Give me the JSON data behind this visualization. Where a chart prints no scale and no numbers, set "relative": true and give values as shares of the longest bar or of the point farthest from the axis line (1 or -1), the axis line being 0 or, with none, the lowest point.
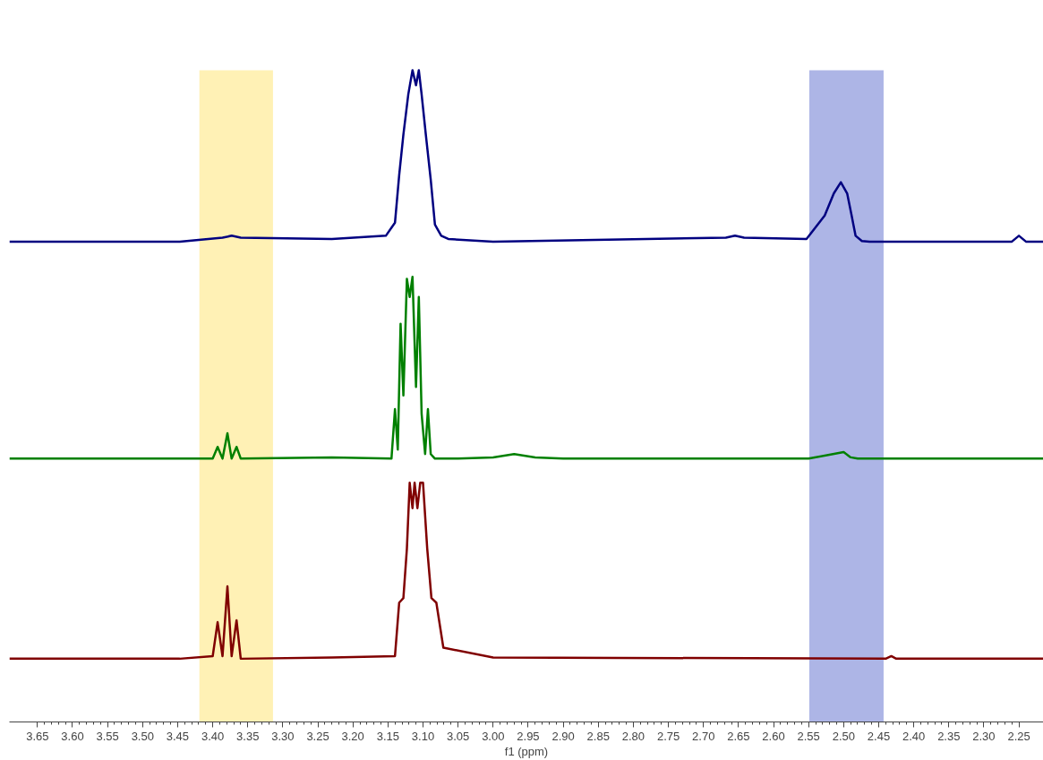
{
  "chart_data": {
    "type": "line",
    "relative": true,
    "xlabel": "f1 (ppm)",
    "xlim": [
      3.69,
      2.215
    ],
    "xticks": [
      {
        "value": 3.65,
        "label": "3.65"
      },
      {
        "value": 3.6,
        "label": "3.60"
      },
      {
        "value": 3.55,
        "label": "3.55"
      },
      {
        "value": 3.5,
        "label": "3.50"
      },
      {
        "value": 3.45,
        "label": "3.45"
      },
      {
        "value": 3.4,
        "label": "3.40"
      },
      {
        "value": 3.35,
        "label": "3.35"
      },
      {
        "value": 3.3,
        "label": "3.30"
      },
      {
        "value": 3.25,
        "label": "3.25"
      },
      {
        "value": 3.2,
        "label": "3.20"
      },
      {
        "value": 3.15,
        "label": "3.15"
      },
      {
        "value": 3.1,
        "label": "3.10"
      },
      {
        "value": 3.05,
        "label": "3.05"
      },
      {
        "value": 3.0,
        "label": "3.00"
      },
      {
        "value": 2.95,
        "label": "2.95"
      },
      {
        "value": 2.9,
        "label": "2.90"
      },
      {
        "value": 2.85,
        "label": "2.85"
      },
      {
        "value": 2.8,
        "label": "2.80"
      },
      {
        "value": 2.75,
        "label": "2.75"
      },
      {
        "value": 2.7,
        "label": "2.70"
      },
      {
        "value": 2.65,
        "label": "2.65"
      },
      {
        "value": 2.6,
        "label": "2.60"
      },
      {
        "value": 2.55,
        "label": "2.55"
      },
      {
        "value": 2.5,
        "label": "2.50"
      },
      {
        "value": 2.45,
        "label": "2.45"
      },
      {
        "value": 2.4,
        "label": "2.40"
      },
      {
        "value": 2.35,
        "label": "2.35"
      },
      {
        "value": 2.3,
        "label": "2.30"
      },
      {
        "value": 2.25,
        "label": "2.25"
      }
    ],
    "grid": false,
    "line_style": "solid",
    "marker": "none",
    "series": [
      {
        "color": "#000080",
        "x": [
          3.69,
          3.447,
          3.386,
          3.373,
          3.36,
          3.23,
          3.153,
          3.14,
          3.134,
          3.128,
          3.121,
          3.115,
          3.11,
          3.106,
          3.102,
          3.096,
          3.089,
          3.083,
          3.074,
          3.064,
          3.0,
          2.668,
          2.655,
          2.642,
          2.553,
          2.527,
          2.514,
          2.504,
          2.495,
          2.489,
          2.483,
          2.474,
          2.463,
          2.438,
          2.26,
          2.25,
          2.24,
          2.215
        ],
        "values": [
          0.737,
          0.737,
          0.743,
          0.746,
          0.743,
          0.741,
          0.746,
          0.766,
          0.839,
          0.901,
          0.963,
          1.0,
          0.977,
          1.0,
          0.963,
          0.901,
          0.832,
          0.763,
          0.746,
          0.741,
          0.737,
          0.743,
          0.746,
          0.743,
          0.741,
          0.777,
          0.811,
          0.828,
          0.811,
          0.779,
          0.746,
          0.738,
          0.737,
          0.737,
          0.737,
          0.746,
          0.737,
          0.737
        ]
      },
      {
        "color": "#008000",
        "x": [
          3.69,
          3.447,
          3.4,
          3.393,
          3.386,
          3.379,
          3.373,
          3.366,
          3.36,
          3.23,
          3.145,
          3.14,
          3.136,
          3.132,
          3.128,
          3.123,
          3.119,
          3.115,
          3.11,
          3.106,
          3.102,
          3.097,
          3.093,
          3.089,
          3.083,
          3.05,
          3.0,
          2.97,
          2.94,
          2.9,
          2.55,
          2.5,
          2.49,
          2.48,
          2.215
        ],
        "values": [
          0.404,
          0.404,
          0.404,
          0.422,
          0.404,
          0.443,
          0.404,
          0.422,
          0.404,
          0.406,
          0.404,
          0.48,
          0.418,
          0.611,
          0.501,
          0.68,
          0.652,
          0.683,
          0.514,
          0.652,
          0.473,
          0.411,
          0.48,
          0.411,
          0.404,
          0.404,
          0.406,
          0.411,
          0.406,
          0.404,
          0.404,
          0.414,
          0.406,
          0.404,
          0.404
        ]
      },
      {
        "color": "#800000",
        "x": [
          3.69,
          3.447,
          3.4,
          3.393,
          3.386,
          3.379,
          3.373,
          3.366,
          3.36,
          3.23,
          3.14,
          3.134,
          3.128,
          3.123,
          3.119,
          3.115,
          3.112,
          3.108,
          3.104,
          3.1,
          3.094,
          3.088,
          3.081,
          3.071,
          3.0,
          2.44,
          2.432,
          2.425,
          2.215
        ],
        "values": [
          0.097,
          0.097,
          0.101,
          0.153,
          0.101,
          0.208,
          0.101,
          0.156,
          0.097,
          0.099,
          0.101,
          0.183,
          0.19,
          0.266,
          0.367,
          0.328,
          0.367,
          0.328,
          0.367,
          0.367,
          0.266,
          0.19,
          0.183,
          0.114,
          0.099,
          0.097,
          0.101,
          0.097,
          0.097
        ]
      }
    ],
    "bands": [
      {
        "axis": "x",
        "from": 3.419,
        "to": 3.314,
        "color": "#ffdf5a"
      },
      {
        "axis": "x",
        "from": 2.549,
        "to": 2.443,
        "color": "#4a5ac8"
      }
    ]
  }
}
